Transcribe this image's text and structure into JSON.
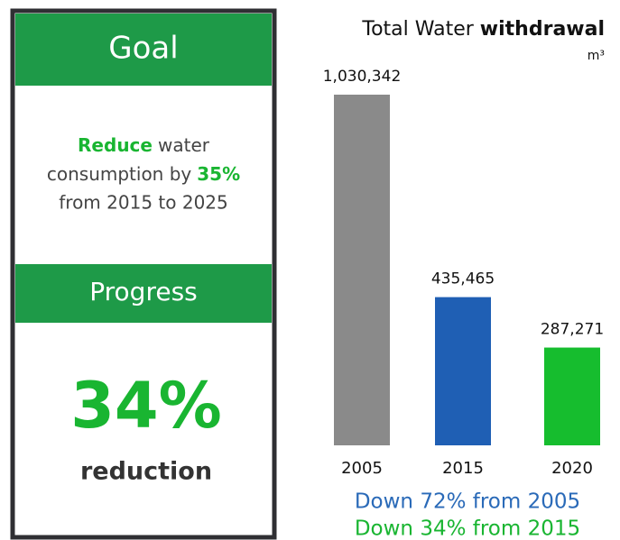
{
  "goal_panel": {
    "goal_heading": "Goal",
    "goal_lines": [
      "Reduce",
      "water",
      "consumption by",
      "35%",
      "from 2015 to 2025"
    ],
    "progress_heading": "Progress",
    "progress_value": "34%",
    "progress_caption": "reduction"
  },
  "chart_data": {
    "type": "bar",
    "title": [
      "Total Water",
      "withdrawal"
    ],
    "unit": "m³",
    "categories": [
      "2005",
      "2015",
      "2020"
    ],
    "values": [
      1030342,
      435465,
      287271
    ],
    "value_labels": [
      "1,030,342",
      "435,465",
      "287,271"
    ],
    "colors": [
      "#8a8a8a",
      "#1f5fb4",
      "#16bd2e"
    ],
    "annotations": [
      {
        "text": "Down 72% from 2005",
        "color": "#2a6ab8"
      },
      {
        "text": "Down 34% from 2015",
        "color": "#19b531"
      }
    ]
  }
}
